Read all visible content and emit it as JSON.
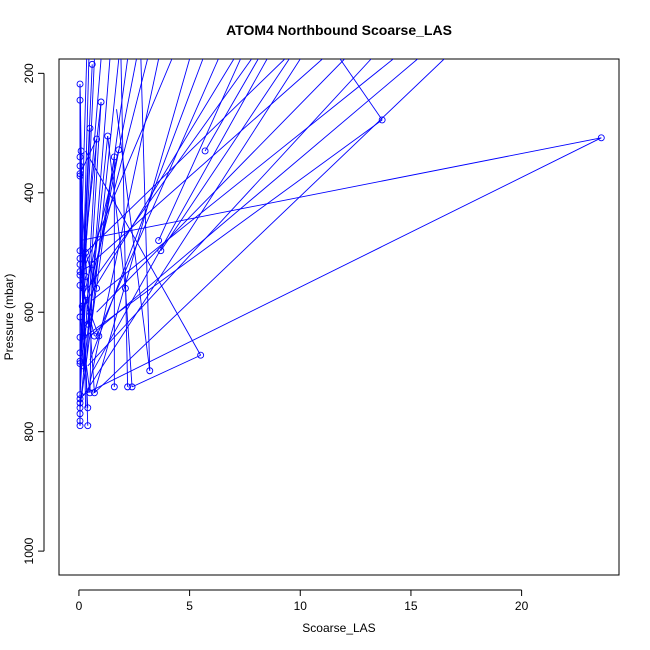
{
  "chart_data": {
    "type": "line",
    "title": "ATOM4 Northbound Scoarse_LAS",
    "xlabel": "Scoarse_LAS",
    "ylabel": "Pressure (mbar)",
    "xlim": [
      -0.9,
      24.4
    ],
    "ylim": [
      1040,
      176
    ],
    "y_reversed": true,
    "grid": false,
    "x_ticks": [
      0,
      5,
      10,
      15,
      20
    ],
    "y_ticks": [
      200,
      400,
      600,
      800,
      1000
    ],
    "series": [
      {
        "color": "#0000ff",
        "marker": "open-circle",
        "points": [
          [
            0.05,
            218
          ],
          [
            0.05,
            245
          ],
          [
            0.1,
            330
          ],
          [
            0.6,
            185
          ],
          [
            0.5,
            292
          ],
          [
            1.0,
            248
          ],
          [
            0.8,
            310
          ],
          [
            1.3,
            305
          ],
          [
            5.7,
            330
          ],
          [
            13.7,
            278
          ],
          [
            23.6,
            308
          ],
          [
            1.8,
            328
          ],
          [
            1.6,
            340
          ],
          [
            0.05,
            340
          ],
          [
            0.05,
            355
          ],
          [
            0.05,
            368
          ],
          [
            0.05,
            372
          ],
          [
            3.6,
            480
          ],
          [
            3.7,
            497
          ],
          [
            0.05,
            497
          ],
          [
            0.05,
            510
          ],
          [
            0.05,
            520
          ],
          [
            0.05,
            532
          ],
          [
            0.05,
            538
          ],
          [
            0.05,
            555
          ],
          [
            0.2,
            560
          ],
          [
            0.05,
            608
          ],
          [
            0.05,
            642
          ],
          [
            0.05,
            668
          ],
          [
            0.05,
            682
          ],
          [
            0.05,
            686
          ],
          [
            0.7,
            640
          ],
          [
            0.9,
            640
          ],
          [
            0.5,
            735
          ],
          [
            0.7,
            735
          ],
          [
            0.05,
            738
          ],
          [
            0.05,
            745
          ],
          [
            0.05,
            752
          ],
          [
            0.05,
            760
          ],
          [
            0.4,
            760
          ],
          [
            0.05,
            770
          ],
          [
            0.05,
            782
          ],
          [
            0.05,
            790
          ],
          [
            0.4,
            790
          ],
          [
            1.6,
            725
          ],
          [
            2.2,
            725
          ],
          [
            2.4,
            725
          ],
          [
            3.2,
            698
          ],
          [
            5.5,
            672
          ],
          [
            2.1,
            560
          ],
          [
            0.3,
            580
          ],
          [
            0.4,
            620
          ],
          [
            0.2,
            690
          ],
          [
            0.6,
            520
          ],
          [
            0.3,
            500
          ],
          [
            0.8,
            560
          ],
          [
            0.2,
            640
          ],
          [
            0.5,
            600
          ],
          [
            0.3,
            540
          ],
          [
            0.15,
            590
          ]
        ],
        "segments": [
          [
            0.05,
            560,
            0.35,
            176
          ],
          [
            0.05,
            740,
            0.45,
            176
          ],
          [
            0.1,
            680,
            0.7,
            176
          ],
          [
            0.2,
            540,
            1.0,
            176
          ],
          [
            0.3,
            700,
            1.4,
            176
          ],
          [
            0.5,
            640,
            1.8,
            176
          ],
          [
            0.05,
            760,
            2.2,
            176
          ],
          [
            0.6,
            560,
            2.6,
            176
          ],
          [
            0.2,
            600,
            3.1,
            176
          ],
          [
            0.4,
            735,
            3.6,
            176
          ],
          [
            0.3,
            520,
            4.2,
            176
          ],
          [
            0.7,
            735,
            5.0,
            176
          ],
          [
            0.5,
            680,
            5.6,
            176
          ],
          [
            0.8,
            640,
            6.3,
            176
          ],
          [
            0.05,
            600,
            7.0,
            176
          ],
          [
            0.4,
            560,
            7.8,
            176
          ],
          [
            0.6,
            700,
            8.5,
            176
          ],
          [
            0.3,
            500,
            9.3,
            176
          ],
          [
            0.2,
            740,
            10.0,
            176
          ],
          [
            0.5,
            520,
            11.0,
            176
          ],
          [
            0.8,
            600,
            12.0,
            176
          ],
          [
            0.4,
            690,
            13.2,
            176
          ],
          [
            0.6,
            580,
            14.2,
            176
          ],
          [
            0.5,
            640,
            15.3,
            176
          ],
          [
            0.7,
            735,
            16.5,
            176
          ],
          [
            3.7,
            497,
            9.5,
            176
          ],
          [
            3.6,
            480,
            7.3,
            176
          ],
          [
            5.7,
            330,
            8.1,
            176
          ],
          [
            23.6,
            308,
            0.05,
            480
          ],
          [
            23.6,
            308,
            0.2,
            738
          ],
          [
            13.7,
            278,
            0.3,
            640
          ],
          [
            13.7,
            278,
            11.8,
            176
          ],
          [
            5.5,
            672,
            0.3,
            330
          ],
          [
            5.5,
            672,
            2.4,
            725
          ],
          [
            3.2,
            698,
            1.7,
            260
          ],
          [
            3.2,
            698,
            2.8,
            176
          ],
          [
            2.1,
            560,
            1.3,
            305
          ],
          [
            2.1,
            560,
            2.4,
            725
          ],
          [
            1.6,
            725,
            1.6,
            340
          ],
          [
            2.2,
            725,
            1.9,
            176
          ],
          [
            1.8,
            328,
            0.05,
            600
          ],
          [
            1.3,
            305,
            0.05,
            760
          ],
          [
            1.0,
            248,
            0.05,
            560
          ],
          [
            0.8,
            310,
            0.2,
            700
          ],
          [
            0.5,
            292,
            0.05,
            680
          ],
          [
            0.6,
            185,
            0.2,
            520
          ],
          [
            0.1,
            330,
            0.05,
            790
          ],
          [
            0.05,
            218,
            0.3,
            760
          ],
          [
            0.05,
            245,
            0.05,
            745
          ],
          [
            0.05,
            340,
            0.05,
            782
          ],
          [
            0.05,
            355,
            0.05,
            770
          ],
          [
            0.05,
            372,
            0.05,
            686
          ],
          [
            0.05,
            497,
            0.4,
            760
          ],
          [
            0.05,
            510,
            0.05,
            642
          ],
          [
            0.05,
            520,
            0.05,
            682
          ],
          [
            0.05,
            538,
            0.7,
            640
          ],
          [
            0.05,
            555,
            0.9,
            640
          ],
          [
            0.05,
            608,
            0.5,
            735
          ],
          [
            0.05,
            668,
            0.05,
            752
          ],
          [
            0.2,
            560,
            0.4,
            790
          ],
          [
            0.3,
            580,
            0.05,
            738
          ],
          [
            0.6,
            520,
            0.5,
            735
          ],
          [
            0.3,
            500,
            0.8,
            560
          ],
          [
            0.2,
            640,
            0.5,
            600
          ],
          [
            0.15,
            590,
            0.3,
            540
          ],
          [
            0.05,
            532,
            0.6,
            520
          ],
          [
            0.05,
            368,
            0.8,
            310
          ],
          [
            0.4,
            620,
            1.0,
            248
          ],
          [
            0.2,
            690,
            0.05,
            218
          ],
          [
            1.6,
            340,
            0.4,
            620
          ],
          [
            0.7,
            735,
            0.05,
            368
          ],
          [
            0.05,
            790,
            0.05,
            230
          ]
        ]
      }
    ]
  }
}
